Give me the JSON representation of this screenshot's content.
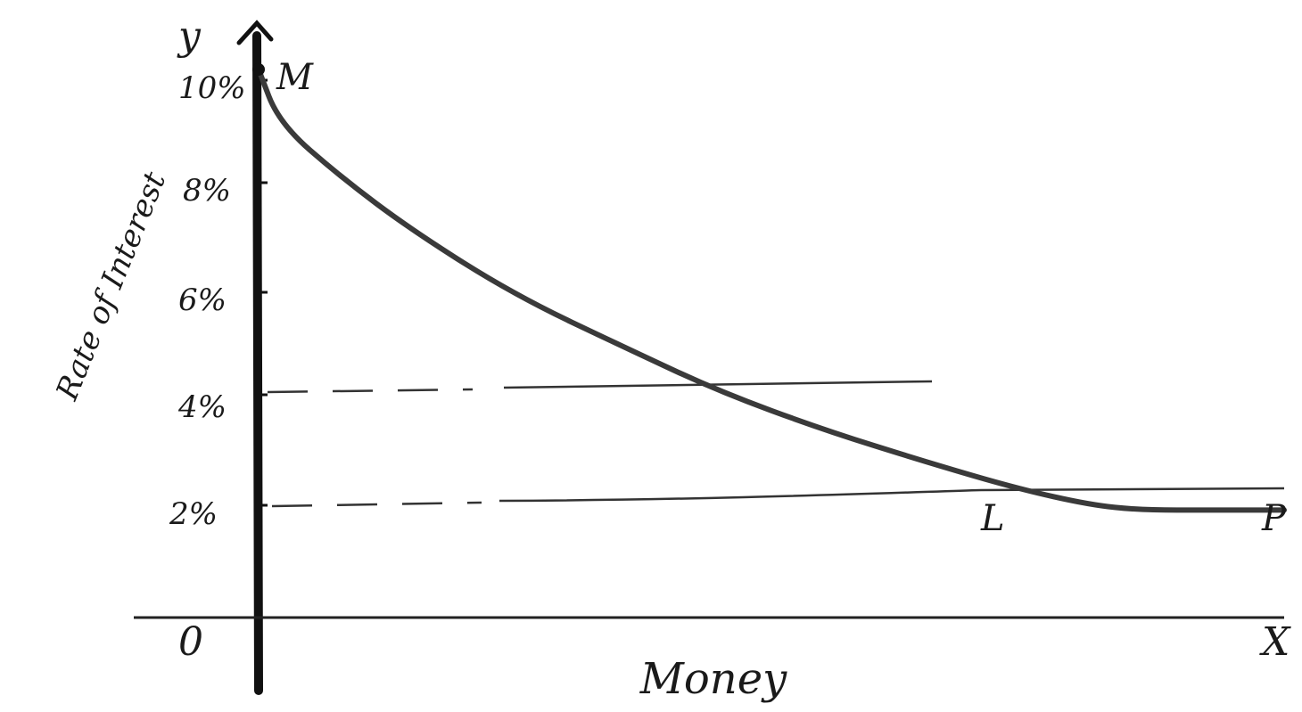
{
  "chart_data": {
    "type": "line",
    "xlabel": "Money",
    "ylabel": "Rate of Interest",
    "x_axis_letter": "X",
    "y_axis_letter": "y",
    "origin_label": "0",
    "yticks": [
      {
        "value": 10,
        "label": "10%"
      },
      {
        "value": 8,
        "label": "8%"
      },
      {
        "value": 6,
        "label": "6%"
      },
      {
        "value": 4,
        "label": "4%"
      },
      {
        "value": 2,
        "label": "2%"
      }
    ],
    "ylim": [
      0,
      11
    ],
    "series": [
      {
        "x": [
          0,
          0.2,
          0.8,
          1.5,
          2.5,
          3.6,
          4.5,
          5.5,
          6.5,
          7.4,
          8.1,
          8.6,
          9.3,
          10
        ],
        "y": [
          10.2,
          9.2,
          8.2,
          7.2,
          6.0,
          5.0,
          4.2,
          3.5,
          2.9,
          2.4,
          2.1,
          2.0,
          2.0,
          2.0
        ]
      }
    ],
    "reference_lines": [
      {
        "y": 4,
        "x_end": 6.4,
        "style": "dashed-then-solid"
      },
      {
        "y": 2,
        "x_end": 10,
        "style": "dashed-then-solid"
      }
    ],
    "points": [
      {
        "label": "M",
        "x": 0,
        "y": 10.2
      },
      {
        "label": "L",
        "x": 6.6,
        "y": 2
      },
      {
        "label": "P",
        "x": 9.3,
        "y": 2
      }
    ],
    "xlim": [
      0,
      10
    ],
    "grid": false,
    "legend": "none"
  }
}
